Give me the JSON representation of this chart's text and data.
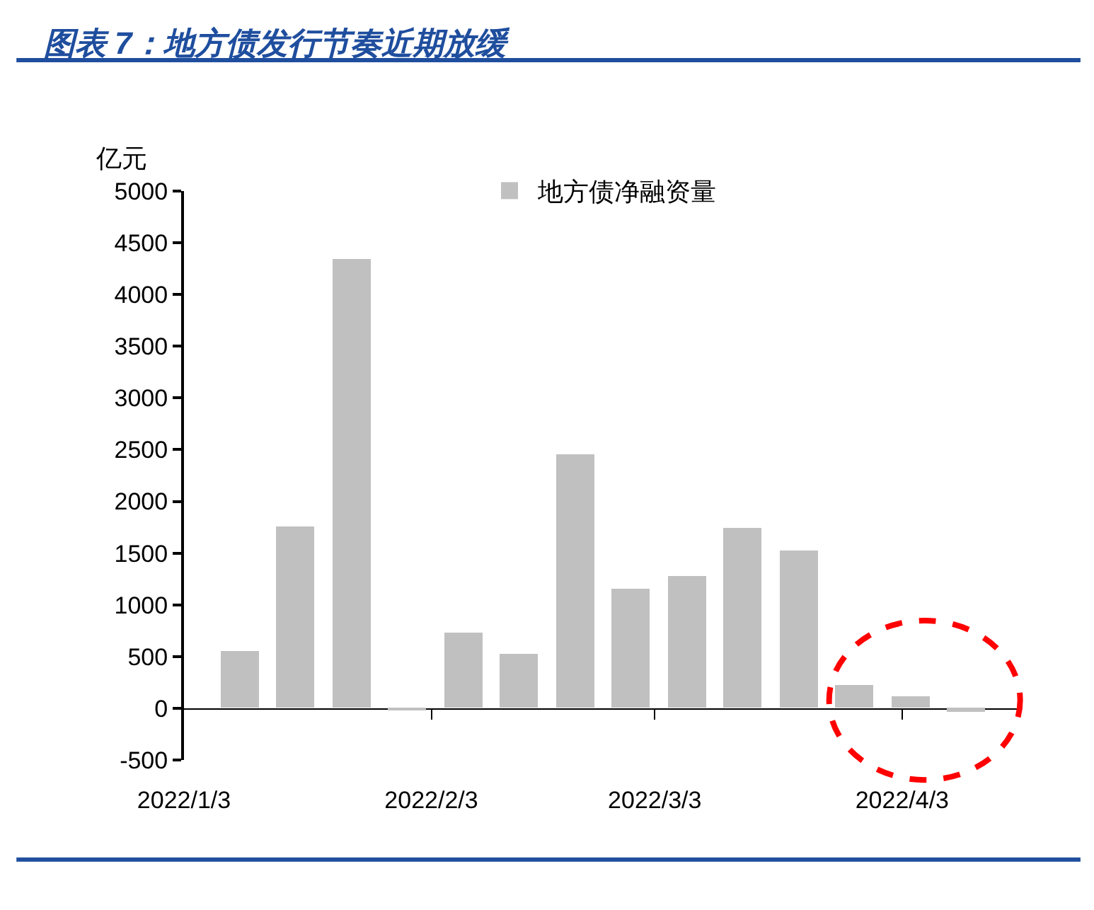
{
  "chart_data": {
    "type": "bar",
    "title": "图表 7：地方债发行节奏近期放缓",
    "ylabel": "亿元",
    "x": [
      "2022-01-10",
      "2022-01-17",
      "2022-01-24",
      "2022-01-31",
      "2022-02-07",
      "2022-02-14",
      "2022-02-21",
      "2022-02-28",
      "2022-03-07",
      "2022-03-14",
      "2022-03-21",
      "2022-03-28",
      "2022-04-04",
      "2022-04-11"
    ],
    "series": [
      {
        "name": "地方债净融资量",
        "color": "#c0c0c0",
        "values": [
          550,
          1760,
          4340,
          -10,
          730,
          520,
          2460,
          1160,
          1280,
          1740,
          1520,
          220,
          110,
          -30
        ]
      }
    ],
    "xlim": [
      "2022-01-03",
      "2022-04-18"
    ],
    "xticks": [
      {
        "value": "2022-01-03",
        "label": "2022/1/3"
      },
      {
        "value": "2022-02-03",
        "label": "2022/2/3"
      },
      {
        "value": "2022-03-03",
        "label": "2022/3/3"
      },
      {
        "value": "2022-04-03",
        "label": "2022/4/3"
      }
    ],
    "ylim": [
      -500,
      5000
    ],
    "yticks": [
      -500,
      0,
      500,
      1000,
      1500,
      2000,
      2500,
      3000,
      3500,
      4000,
      4500,
      5000
    ],
    "legend": "top"
  }
}
